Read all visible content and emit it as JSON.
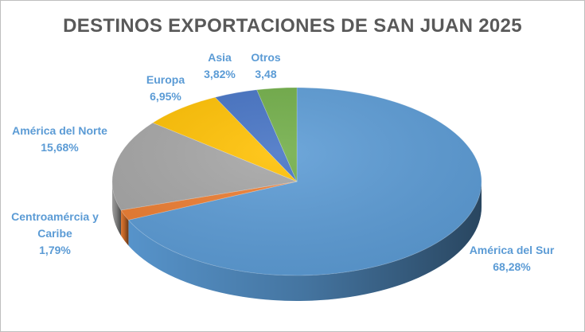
{
  "chart_data": {
    "type": "pie",
    "title": "DESTINOS EXPORTACIONES DE SAN JUAN 2025",
    "legend": "none",
    "style": "3d",
    "slices": [
      {
        "label": "América del Sur",
        "value_label": "68,28%",
        "value": 68.28,
        "color": "#5b9bd5"
      },
      {
        "label": "Centroamércia y Caribe",
        "label_lines": [
          "Centroamércia y",
          "Caribe"
        ],
        "value_label": "1,79%",
        "value": 1.79,
        "color": "#ed7d31"
      },
      {
        "label": "América del Norte",
        "value_label": "15,68%",
        "value": 15.68,
        "color": "#a5a5a5"
      },
      {
        "label": "Europa",
        "value_label": "6,95%",
        "value": 6.95,
        "color": "#ffc000"
      },
      {
        "label": "Asia",
        "value_label": "3,82%",
        "value": 3.82,
        "color": "#4472c4"
      },
      {
        "label": "Otros",
        "value_label": "3,48",
        "value": 3.48,
        "color": "#70ad47"
      }
    ],
    "label_color": "#5b9bd5"
  }
}
